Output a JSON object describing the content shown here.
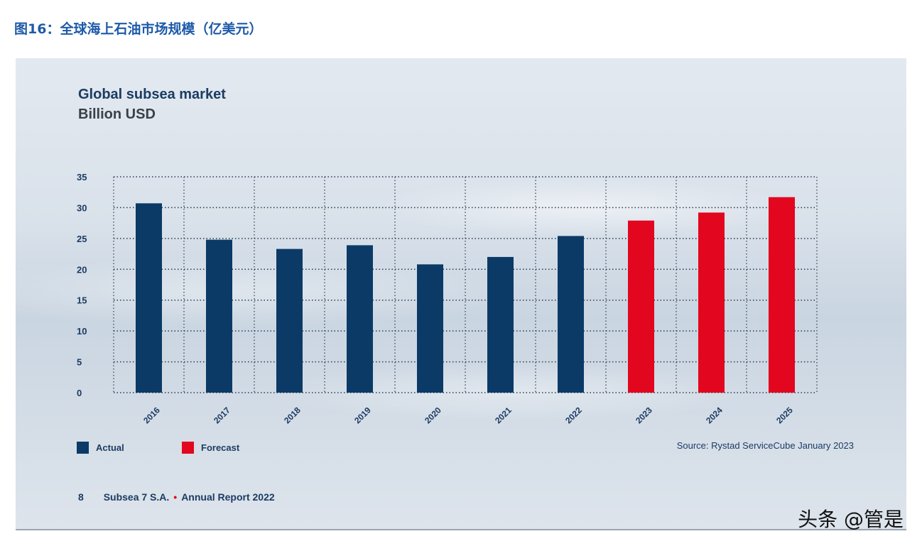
{
  "figure_title": "图16：全球海上石油市场规模（亿美元）",
  "watermark": "头条 @管是",
  "chart_data": {
    "type": "bar",
    "title": "Global subsea market",
    "subtitle": "Billion USD",
    "categories": [
      "2016",
      "2017",
      "2018",
      "2019",
      "2020",
      "2021",
      "2022",
      "2023",
      "2024",
      "2025"
    ],
    "values": [
      30.7,
      24.8,
      23.3,
      23.9,
      20.8,
      22.0,
      25.4,
      27.9,
      29.2,
      31.7
    ],
    "status": [
      "Actual",
      "Actual",
      "Actual",
      "Actual",
      "Actual",
      "Actual",
      "Actual",
      "Forecast",
      "Forecast",
      "Forecast"
    ],
    "ylim": [
      0,
      35
    ],
    "yticks": [
      0,
      5,
      10,
      15,
      20,
      25,
      30,
      35
    ],
    "grid": true,
    "legend": [
      {
        "name": "Actual",
        "color": "#0b3a66"
      },
      {
        "name": "Forecast",
        "color": "#e2061e"
      }
    ],
    "legend_placement": "bottom-left",
    "source": "Source: Rystad ServiceCube January 2023"
  },
  "footer": {
    "page": "8",
    "company": "Subsea 7 S.A.",
    "report": "Annual Report 2022"
  }
}
